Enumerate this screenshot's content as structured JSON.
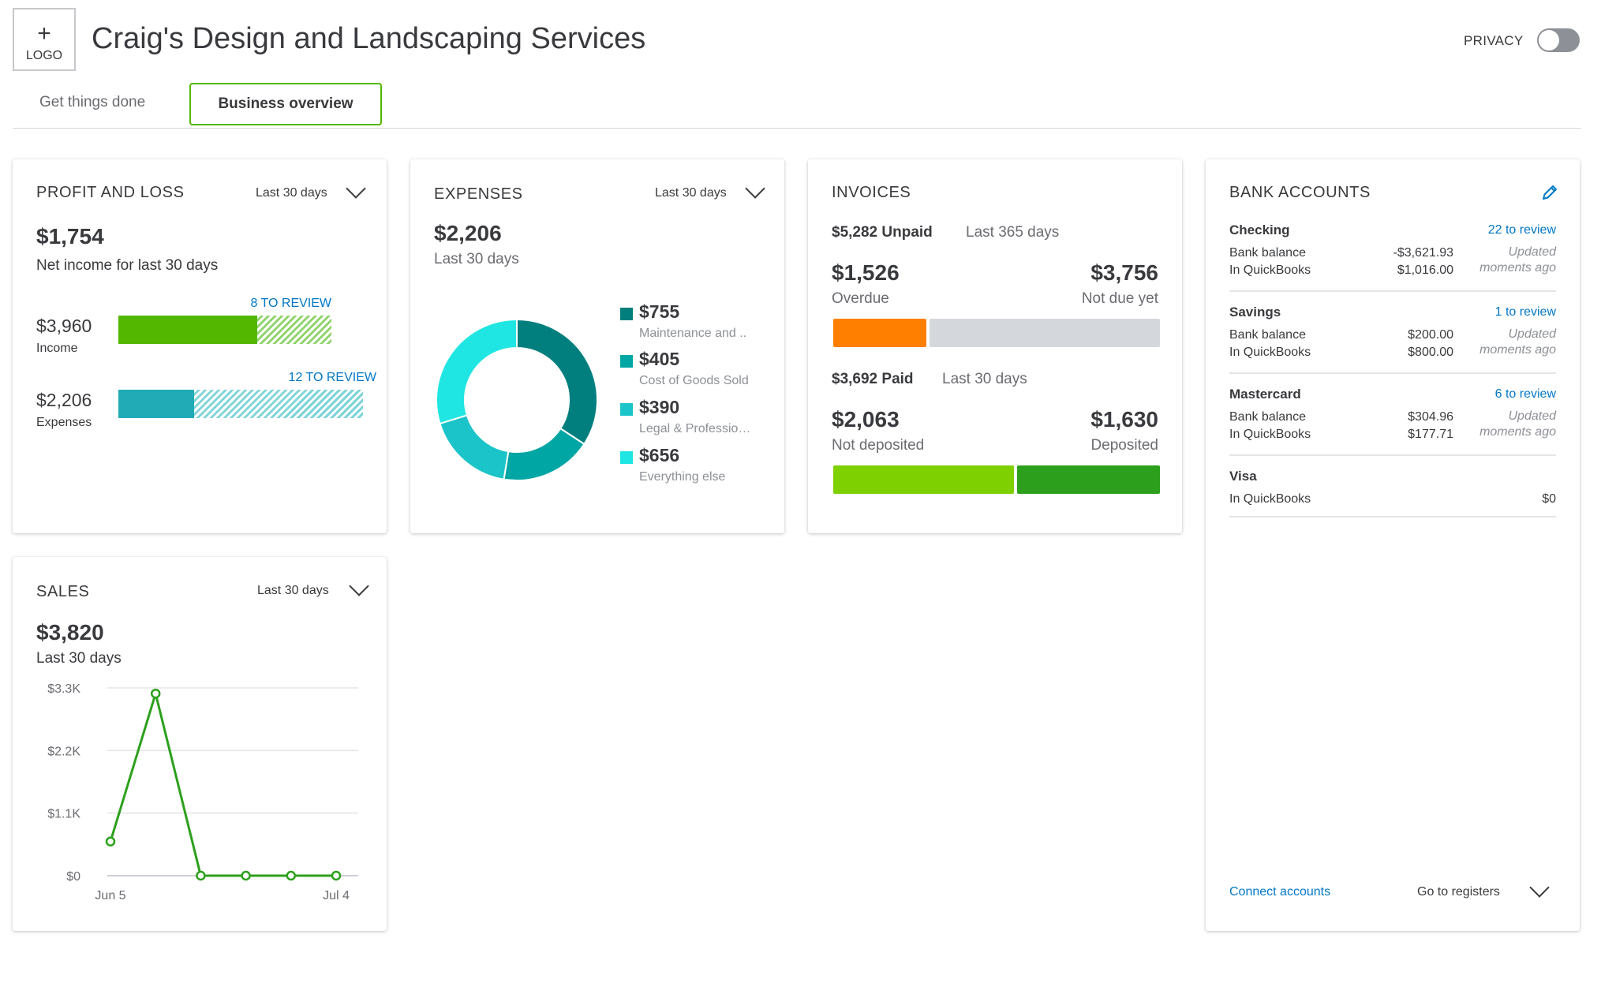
{
  "header": {
    "logo_plus": "+",
    "logo_label": "LOGO",
    "company_name": "Craig's Design and Landscaping Services",
    "privacy_label": "PRIVACY",
    "privacy_on": false
  },
  "tabs": [
    {
      "label": "Get things done",
      "active": false
    },
    {
      "label": "Business overview",
      "active": true
    }
  ],
  "profit_loss": {
    "title": "PROFIT AND LOSS",
    "period": "Last 30 days",
    "net_amount": "$1,754",
    "net_label": "Net income for last 30 days",
    "income": {
      "amount": "$3,960",
      "label": "Income",
      "review": "8 TO REVIEW",
      "color": "#53b700",
      "solid_fraction": 0.65
    },
    "expenses": {
      "amount": "$2,206",
      "label": "Expenses",
      "review": "12 TO REVIEW",
      "color": "#21abb6",
      "solid_fraction": 0.31
    }
  },
  "expenses": {
    "title": "EXPENSES",
    "period": "Last 30 days",
    "total": "$2,206",
    "total_label": "Last 30 days",
    "legend": [
      {
        "amount": "$755",
        "label": "Maintenance and ..",
        "color": "#007f7e",
        "value": 755
      },
      {
        "amount": "$405",
        "label": "Cost of Goods Sold",
        "color": "#00a6a4",
        "value": 405
      },
      {
        "amount": "$390",
        "label": "Legal & Professio…",
        "color": "#1bc4c9",
        "value": 390
      },
      {
        "amount": "$656",
        "label": "Everything else",
        "color": "#1fe6e2",
        "value": 656
      }
    ]
  },
  "invoices": {
    "title": "INVOICES",
    "unpaid_amount": "$5,282 Unpaid",
    "unpaid_period": "Last 365 days",
    "overdue_amount": "$1,526",
    "overdue_label": "Overdue",
    "not_due_amount": "$3,756",
    "not_due_label": "Not due yet",
    "overdue_color": "#ff8000",
    "not_due_color": "#d4d7dc",
    "paid_amount": "$3,692 Paid",
    "paid_period": "Last 30 days",
    "not_deposited_amount": "$2,063",
    "not_deposited_label": "Not deposited",
    "deposited_amount": "$1,630",
    "deposited_label": "Deposited",
    "not_deposited_color": "#7fd000",
    "deposited_color": "#2ca01c"
  },
  "bank_accounts": {
    "title": "BANK ACCOUNTS",
    "accounts": [
      {
        "name": "Checking",
        "review": "22 to review",
        "bank_label": "Bank balance",
        "bank_value": "-$3,621.93",
        "qb_label": "In QuickBooks",
        "qb_value": "$1,016.00",
        "updated_1": "Updated",
        "updated_2": "moments ago"
      },
      {
        "name": "Savings",
        "review": "1 to review",
        "bank_label": "Bank balance",
        "bank_value": "$200.00",
        "qb_label": "In QuickBooks",
        "qb_value": "$800.00",
        "updated_1": "Updated",
        "updated_2": "moments ago"
      },
      {
        "name": "Mastercard",
        "review": "6 to review",
        "bank_label": "Bank balance",
        "bank_value": "$304.96",
        "qb_label": "In QuickBooks",
        "qb_value": "$177.71",
        "updated_1": "Updated",
        "updated_2": "moments ago"
      },
      {
        "name": "Visa",
        "qb_label": "In QuickBooks",
        "qb_value": "$0"
      }
    ],
    "connect_label": "Connect accounts",
    "registers_label": "Go to registers"
  },
  "sales": {
    "title": "SALES",
    "period": "Last 30 days",
    "total": "$3,820",
    "total_label": "Last 30 days"
  },
  "chart_data": {
    "type": "line",
    "y_tick_labels": [
      "$3.3K",
      "$2.2K",
      "$1.1K",
      "$0"
    ],
    "x_tick_labels": [
      "Jun 5",
      "Jul 4"
    ],
    "ylim": [
      0,
      3300
    ],
    "series": [
      {
        "values": [
          600,
          3200,
          0,
          0,
          0,
          0
        ],
        "color": "#2ca01c"
      }
    ],
    "grid": true
  }
}
